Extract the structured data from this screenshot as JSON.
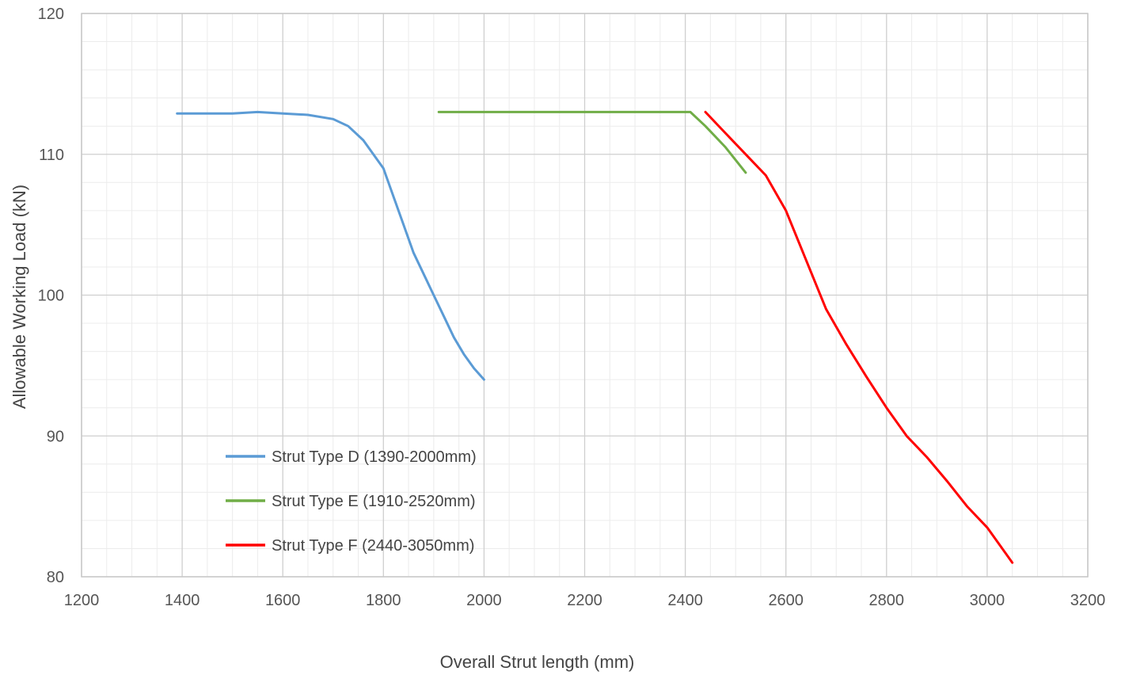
{
  "chart_data": {
    "type": "line",
    "title": "",
    "xlabel": "Overall  Strut length (mm)",
    "ylabel": "Allowable Working Load (kN)",
    "xlim": [
      1200,
      3200
    ],
    "ylim": [
      80,
      120
    ],
    "x_ticks": [
      1200,
      1400,
      1600,
      1800,
      2000,
      2200,
      2400,
      2600,
      2800,
      3000,
      3200
    ],
    "y_ticks": [
      80,
      90,
      100,
      110,
      120
    ],
    "grid": true,
    "legend_position": "bottom-left",
    "series": [
      {
        "name": "Strut Type D (1390-2000mm)",
        "color": "#5b9bd5",
        "points": [
          [
            1390,
            112.9
          ],
          [
            1450,
            112.9
          ],
          [
            1500,
            112.9
          ],
          [
            1550,
            113.0
          ],
          [
            1600,
            112.9
          ],
          [
            1650,
            112.8
          ],
          [
            1700,
            112.5
          ],
          [
            1730,
            112.0
          ],
          [
            1760,
            111.0
          ],
          [
            1780,
            110.0
          ],
          [
            1800,
            109.0
          ],
          [
            1820,
            107.0
          ],
          [
            1840,
            105.0
          ],
          [
            1860,
            103.0
          ],
          [
            1880,
            101.5
          ],
          [
            1900,
            100.0
          ],
          [
            1920,
            98.5
          ],
          [
            1940,
            97.0
          ],
          [
            1960,
            95.8
          ],
          [
            1980,
            94.8
          ],
          [
            2000,
            94.0
          ]
        ]
      },
      {
        "name": "Strut Type E (1910-2520mm)",
        "color": "#70ad47",
        "points": [
          [
            1910,
            113.0
          ],
          [
            2000,
            113.0
          ],
          [
            2100,
            113.0
          ],
          [
            2200,
            113.0
          ],
          [
            2300,
            113.0
          ],
          [
            2410,
            113.0
          ],
          [
            2440,
            112.0
          ],
          [
            2480,
            110.5
          ],
          [
            2520,
            108.7
          ]
        ]
      },
      {
        "name": "Strut Type F (2440-3050mm)",
        "color": "#ff0000",
        "points": [
          [
            2440,
            113.0
          ],
          [
            2480,
            111.5
          ],
          [
            2520,
            110.0
          ],
          [
            2560,
            108.5
          ],
          [
            2600,
            106.0
          ],
          [
            2640,
            102.5
          ],
          [
            2680,
            99.0
          ],
          [
            2720,
            96.5
          ],
          [
            2760,
            94.2
          ],
          [
            2800,
            92.0
          ],
          [
            2840,
            90.0
          ],
          [
            2880,
            88.5
          ],
          [
            2920,
            86.8
          ],
          [
            2960,
            85.0
          ],
          [
            3000,
            83.5
          ],
          [
            3050,
            81.0
          ]
        ]
      }
    ]
  }
}
